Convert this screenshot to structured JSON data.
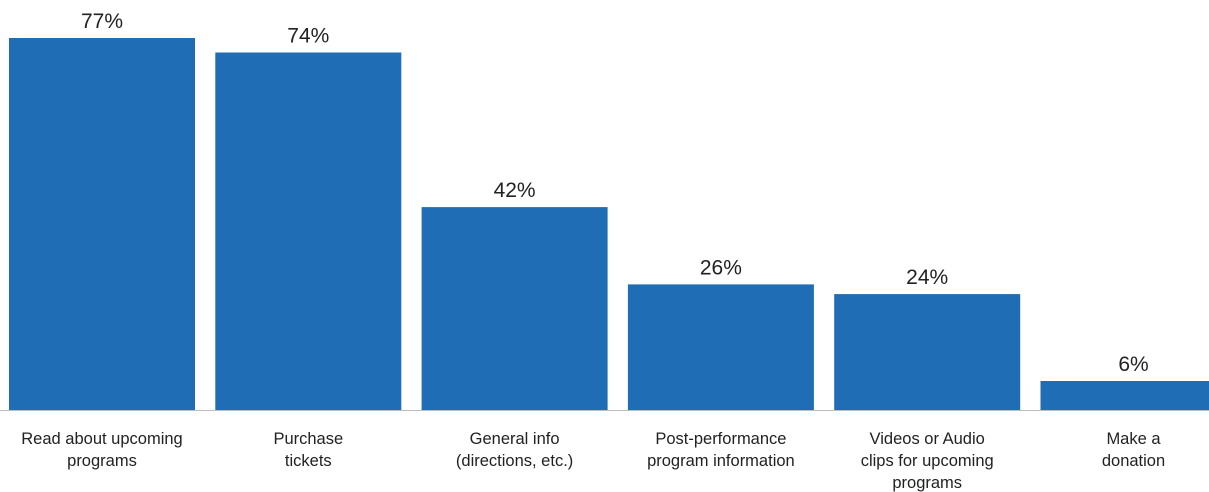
{
  "chart_data": {
    "type": "bar",
    "categories": [
      [
        "Read about upcoming",
        "programs"
      ],
      [
        "Purchase",
        "tickets"
      ],
      [
        "General info",
        "(directions, etc.)"
      ],
      [
        "Post-performance",
        "program information"
      ],
      [
        "Videos or Audio",
        "clips for upcoming",
        "programs"
      ],
      [
        "Make a",
        "donation"
      ]
    ],
    "values": [
      77,
      74,
      42,
      26,
      24,
      6
    ],
    "value_labels": [
      "77%",
      "74%",
      "42%",
      "26%",
      "24%",
      "6%"
    ],
    "title": "",
    "xlabel": "",
    "ylabel": "",
    "ylim": [
      0,
      77
    ],
    "grid": false,
    "legend": "none",
    "colors": {
      "bar": "#1F6DB5",
      "baseline": "#BDBDBD",
      "text": "#222222"
    }
  }
}
